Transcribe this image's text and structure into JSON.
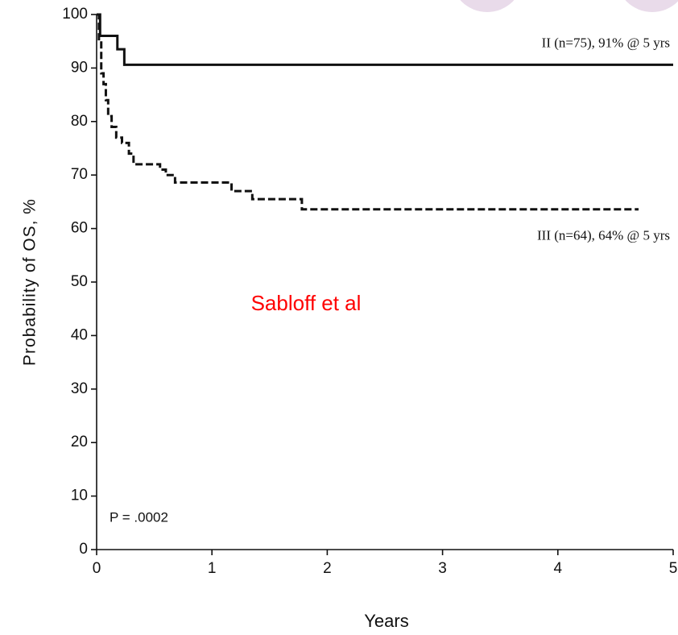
{
  "chart_data": {
    "type": "line",
    "x_label": "Years",
    "y_label": "Probability of OS, %",
    "xlim": [
      0,
      5
    ],
    "xticks": [
      0,
      1,
      2,
      3,
      4,
      5
    ],
    "ylim": [
      0,
      100
    ],
    "yticks": [
      0,
      10,
      20,
      30,
      40,
      50,
      60,
      70,
      80,
      90,
      100
    ],
    "grid": false,
    "series": [
      {
        "name": "II (n=75), 91% @ 5 yrs",
        "color": "#111111",
        "dash": "solid",
        "x": [
          0,
          0.03,
          0.03,
          0.18,
          0.18,
          0.24,
          0.24,
          5
        ],
        "values": [
          100,
          100,
          96,
          96,
          93.5,
          93.5,
          90.6,
          90.6
        ]
      },
      {
        "name": "III (n=64), 64% @ 5 yrs",
        "color": "#111111",
        "dash": "dashed",
        "x": [
          0,
          0.02,
          0.02,
          0.04,
          0.04,
          0.06,
          0.06,
          0.08,
          0.08,
          0.1,
          0.1,
          0.13,
          0.13,
          0.17,
          0.17,
          0.22,
          0.22,
          0.28,
          0.28,
          0.32,
          0.32,
          0.55,
          0.55,
          0.6,
          0.6,
          0.68,
          0.68,
          1.17,
          1.17,
          1.35,
          1.35,
          1.78,
          1.78,
          4.7
        ],
        "values": [
          100,
          100,
          95,
          95,
          89,
          89,
          87,
          87,
          84,
          84,
          81,
          81,
          79,
          79,
          77,
          77,
          76,
          76,
          74,
          74,
          72,
          72,
          71,
          71,
          70,
          70,
          68.6,
          68.6,
          67,
          67,
          65.5,
          65.5,
          63.6,
          63.6
        ]
      }
    ],
    "annotations": [
      {
        "text": "Sabloff et al",
        "color": "#ff0000"
      },
      {
        "text": "P = .0002",
        "color": "#111111"
      }
    ]
  }
}
